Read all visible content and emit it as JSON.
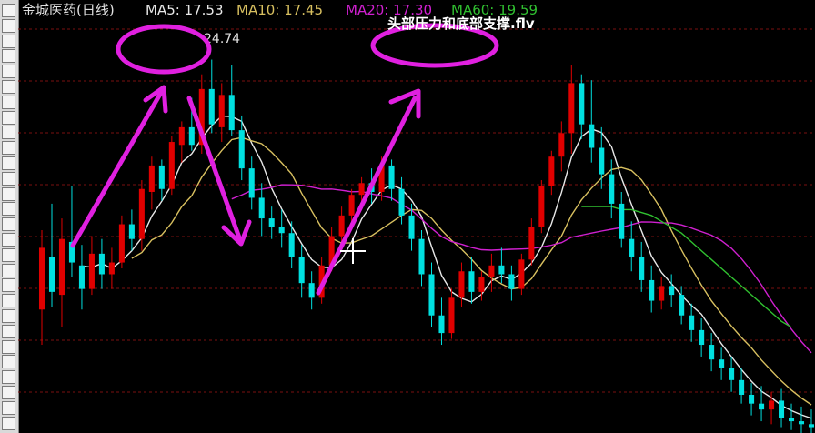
{
  "video_title": "头部压力和底部支撑.flv",
  "chart_data": {
    "type": "candlestick",
    "title": "金城医药(日线)",
    "ma_legend": [
      {
        "label": "MA5: 17.53",
        "color": "#e8e8e8"
      },
      {
        "label": "MA10: 17.45",
        "color": "#d8c060"
      },
      {
        "label": "MA20: 17.30",
        "color": "#d020d0"
      },
      {
        "label": "MA60: 19.59",
        "color": "#30c030"
      }
    ],
    "price_annotation": "24.74",
    "up_color": "#e00000",
    "down_color": "#00e0e0",
    "ylim": [
      12.0,
      25.8
    ],
    "candles": [
      {
        "o": 16.2,
        "h": 18.9,
        "l": 15.0,
        "c": 18.3
      },
      {
        "o": 18.0,
        "h": 19.8,
        "l": 16.3,
        "c": 16.8
      },
      {
        "o": 16.7,
        "h": 19.3,
        "l": 15.6,
        "c": 18.6
      },
      {
        "o": 18.5,
        "h": 20.4,
        "l": 17.3,
        "c": 17.8
      },
      {
        "o": 17.7,
        "h": 18.4,
        "l": 16.2,
        "c": 16.9
      },
      {
        "o": 16.9,
        "h": 18.7,
        "l": 16.7,
        "c": 18.1
      },
      {
        "o": 18.1,
        "h": 18.6,
        "l": 16.9,
        "c": 17.4
      },
      {
        "o": 17.4,
        "h": 18.3,
        "l": 16.9,
        "c": 17.8
      },
      {
        "o": 17.8,
        "h": 19.4,
        "l": 17.6,
        "c": 19.1
      },
      {
        "o": 19.1,
        "h": 19.6,
        "l": 18.2,
        "c": 18.6
      },
      {
        "o": 18.6,
        "h": 20.6,
        "l": 18.2,
        "c": 20.3
      },
      {
        "o": 20.2,
        "h": 21.4,
        "l": 19.6,
        "c": 21.1
      },
      {
        "o": 21.1,
        "h": 21.3,
        "l": 19.9,
        "c": 20.3
      },
      {
        "o": 20.3,
        "h": 22.1,
        "l": 20.1,
        "c": 21.9
      },
      {
        "o": 21.8,
        "h": 22.6,
        "l": 21.2,
        "c": 22.4
      },
      {
        "o": 22.4,
        "h": 23.4,
        "l": 21.6,
        "c": 21.8
      },
      {
        "o": 21.8,
        "h": 24.2,
        "l": 21.5,
        "c": 23.7
      },
      {
        "o": 23.7,
        "h": 24.7,
        "l": 22.2,
        "c": 22.5
      },
      {
        "o": 22.4,
        "h": 23.9,
        "l": 21.9,
        "c": 23.5
      },
      {
        "o": 23.5,
        "h": 24.5,
        "l": 22.1,
        "c": 22.3
      },
      {
        "o": 22.3,
        "h": 22.8,
        "l": 20.6,
        "c": 21.0
      },
      {
        "o": 21.0,
        "h": 21.4,
        "l": 19.6,
        "c": 20.0
      },
      {
        "o": 20.0,
        "h": 20.5,
        "l": 18.7,
        "c": 19.3
      },
      {
        "o": 19.3,
        "h": 19.7,
        "l": 18.6,
        "c": 19.0
      },
      {
        "o": 19.0,
        "h": 19.6,
        "l": 18.3,
        "c": 18.8
      },
      {
        "o": 18.8,
        "h": 19.2,
        "l": 17.6,
        "c": 18.0
      },
      {
        "o": 18.0,
        "h": 18.4,
        "l": 16.6,
        "c": 17.1
      },
      {
        "o": 17.1,
        "h": 17.5,
        "l": 16.2,
        "c": 16.6
      },
      {
        "o": 16.6,
        "h": 18.0,
        "l": 16.4,
        "c": 17.7
      },
      {
        "o": 17.7,
        "h": 19.0,
        "l": 17.5,
        "c": 18.7
      },
      {
        "o": 18.7,
        "h": 19.7,
        "l": 18.4,
        "c": 19.4
      },
      {
        "o": 19.4,
        "h": 20.3,
        "l": 19.1,
        "c": 20.1
      },
      {
        "o": 20.1,
        "h": 20.7,
        "l": 19.7,
        "c": 20.5
      },
      {
        "o": 20.5,
        "h": 21.0,
        "l": 19.8,
        "c": 20.2
      },
      {
        "o": 20.2,
        "h": 21.4,
        "l": 19.9,
        "c": 21.1
      },
      {
        "o": 21.1,
        "h": 21.3,
        "l": 19.9,
        "c": 20.3
      },
      {
        "o": 20.3,
        "h": 20.7,
        "l": 19.1,
        "c": 19.4
      },
      {
        "o": 19.4,
        "h": 19.8,
        "l": 18.2,
        "c": 18.6
      },
      {
        "o": 18.6,
        "h": 18.9,
        "l": 17.0,
        "c": 17.4
      },
      {
        "o": 17.4,
        "h": 17.8,
        "l": 15.6,
        "c": 16.0
      },
      {
        "o": 16.0,
        "h": 16.6,
        "l": 15.0,
        "c": 15.4
      },
      {
        "o": 15.4,
        "h": 16.9,
        "l": 15.2,
        "c": 16.6
      },
      {
        "o": 16.6,
        "h": 17.8,
        "l": 16.3,
        "c": 17.5
      },
      {
        "o": 17.5,
        "h": 18.0,
        "l": 16.4,
        "c": 16.8
      },
      {
        "o": 16.8,
        "h": 17.5,
        "l": 16.5,
        "c": 17.3
      },
      {
        "o": 17.3,
        "h": 18.1,
        "l": 16.8,
        "c": 17.7
      },
      {
        "o": 17.7,
        "h": 18.3,
        "l": 17.1,
        "c": 17.4
      },
      {
        "o": 17.4,
        "h": 17.7,
        "l": 16.5,
        "c": 16.9
      },
      {
        "o": 16.9,
        "h": 18.1,
        "l": 16.7,
        "c": 17.9
      },
      {
        "o": 17.9,
        "h": 19.3,
        "l": 17.7,
        "c": 19.0
      },
      {
        "o": 19.0,
        "h": 20.6,
        "l": 18.8,
        "c": 20.4
      },
      {
        "o": 20.4,
        "h": 21.6,
        "l": 20.1,
        "c": 21.4
      },
      {
        "o": 21.4,
        "h": 22.6,
        "l": 20.9,
        "c": 22.2
      },
      {
        "o": 22.2,
        "h": 24.5,
        "l": 21.5,
        "c": 23.9
      },
      {
        "o": 23.9,
        "h": 24.2,
        "l": 22.0,
        "c": 22.5
      },
      {
        "o": 22.5,
        "h": 24.0,
        "l": 21.2,
        "c": 21.7
      },
      {
        "o": 21.7,
        "h": 22.4,
        "l": 20.3,
        "c": 20.8
      },
      {
        "o": 20.8,
        "h": 21.3,
        "l": 19.3,
        "c": 19.8
      },
      {
        "o": 19.8,
        "h": 20.2,
        "l": 18.3,
        "c": 18.6
      },
      {
        "o": 18.6,
        "h": 19.2,
        "l": 17.5,
        "c": 18.0
      },
      {
        "o": 18.0,
        "h": 18.5,
        "l": 16.8,
        "c": 17.2
      },
      {
        "o": 17.2,
        "h": 17.7,
        "l": 16.1,
        "c": 16.5
      },
      {
        "o": 16.5,
        "h": 17.3,
        "l": 16.2,
        "c": 17.0
      },
      {
        "o": 17.0,
        "h": 17.4,
        "l": 16.3,
        "c": 16.7
      },
      {
        "o": 16.7,
        "h": 17.0,
        "l": 15.7,
        "c": 16.0
      },
      {
        "o": 16.0,
        "h": 16.4,
        "l": 15.1,
        "c": 15.5
      },
      {
        "o": 15.5,
        "h": 15.9,
        "l": 14.6,
        "c": 15.0
      },
      {
        "o": 15.0,
        "h": 15.4,
        "l": 14.1,
        "c": 14.5
      },
      {
        "o": 14.5,
        "h": 14.9,
        "l": 13.8,
        "c": 14.2
      },
      {
        "o": 14.2,
        "h": 14.6,
        "l": 13.4,
        "c": 13.8
      },
      {
        "o": 13.8,
        "h": 14.2,
        "l": 13.0,
        "c": 13.3
      },
      {
        "o": 13.3,
        "h": 13.7,
        "l": 12.6,
        "c": 13.0
      },
      {
        "o": 13.0,
        "h": 13.6,
        "l": 12.4,
        "c": 12.8
      },
      {
        "o": 12.8,
        "h": 13.4,
        "l": 12.3,
        "c": 13.1
      },
      {
        "o": 13.1,
        "h": 13.5,
        "l": 12.2,
        "c": 12.5
      },
      {
        "o": 12.5,
        "h": 13.0,
        "l": 12.1,
        "c": 12.4
      },
      {
        "o": 12.4,
        "h": 12.9,
        "l": 12.0,
        "c": 12.3
      },
      {
        "o": 12.3,
        "h": 12.8,
        "l": 12.0,
        "c": 12.2
      }
    ],
    "ma60": [
      null,
      null,
      null,
      null,
      null,
      null,
      null,
      null,
      null,
      null,
      null,
      null,
      null,
      null,
      null,
      null,
      null,
      null,
      null,
      null,
      null,
      null,
      null,
      null,
      null,
      null,
      null,
      null,
      null,
      null,
      null,
      null,
      null,
      null,
      null,
      null,
      null,
      null,
      null,
      null,
      null,
      null,
      null,
      null,
      null,
      null,
      null,
      null,
      null,
      null,
      null,
      null,
      null,
      null,
      19.7,
      19.7,
      19.7,
      19.7,
      19.6,
      19.6,
      19.5,
      19.4,
      19.2,
      19.0,
      18.8,
      18.5,
      18.2,
      17.9,
      17.6,
      17.3,
      17.0,
      16.7,
      16.4,
      16.1,
      15.8,
      15.6
    ],
    "annotations": [
      "circle-top-1",
      "circle-top-2",
      "arrow-up-1",
      "arrow-down",
      "arrow-up-2"
    ]
  }
}
